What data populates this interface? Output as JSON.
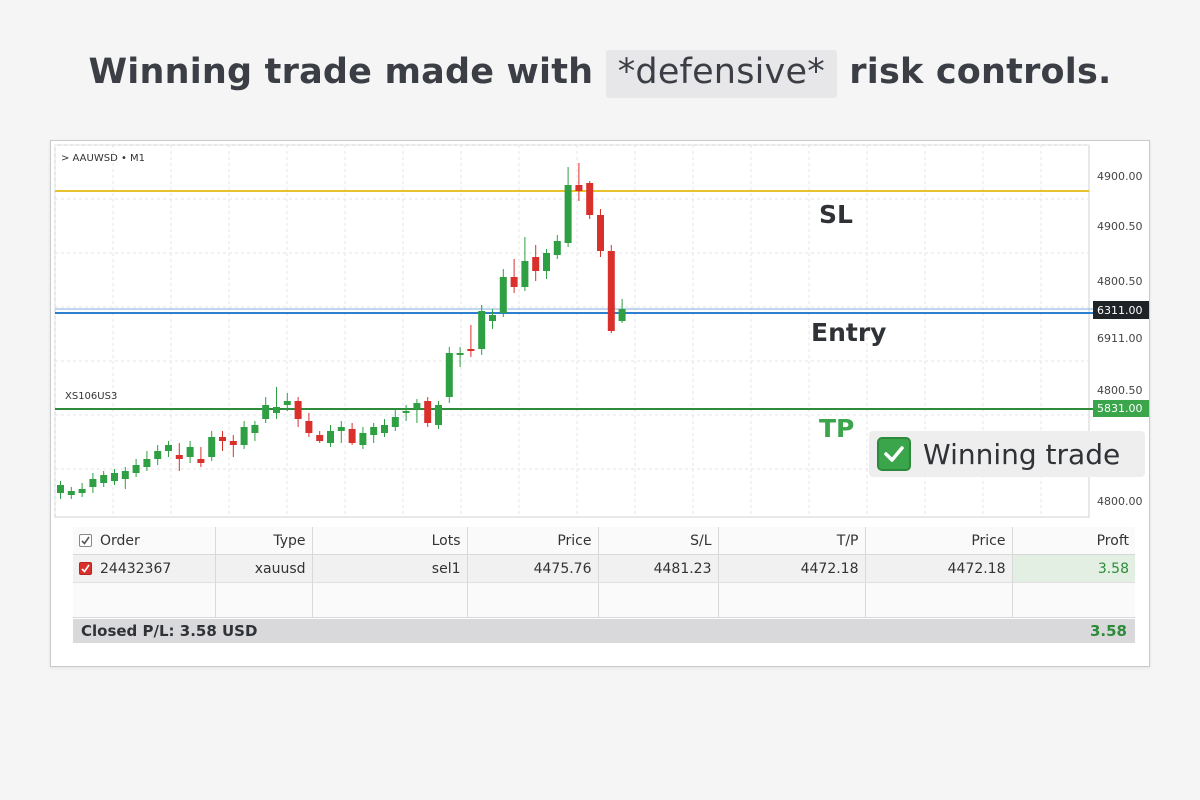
{
  "headline": {
    "before": "Winning trade made with ",
    "highlight": "*defensive*",
    "after": " risk controls."
  },
  "chart": {
    "symbol": "> AAUWSD • M1",
    "left_label": "XS106US3",
    "y_axis_labels": [
      "4900.00",
      "4900.50",
      "4800.50",
      "6911.00",
      "4800.50",
      "4800.00"
    ],
    "current_price_tag": "6311.00",
    "tp_price_tag": "5831.00",
    "sl_label": "SL",
    "entry_label": "Entry",
    "tp_label": "TP",
    "colors": {
      "sl_line": "#e8c22c",
      "entry_line": "#2f7fd0",
      "tp_line": "#2e8b3a",
      "bull": "#2ea043",
      "bear": "#d9302c"
    }
  },
  "badge": {
    "icon": "check-icon",
    "text": "Winning trade"
  },
  "orders": {
    "headers": {
      "order": "Order",
      "type": "Type",
      "lots": "Lots",
      "price": "Price",
      "sl": "S/L",
      "tp": "T/P",
      "price2": "Price",
      "profit": "Proft"
    },
    "row": {
      "order": "24432367",
      "type": "xauusd",
      "lots": "sel1",
      "price": "4475.76",
      "sl": "4481.23",
      "tp": "4472.18",
      "price2": "4472.18",
      "profit": "3.58"
    }
  },
  "closed": {
    "label": "Closed P/L: 3.58 USD",
    "value": "3.58"
  }
}
